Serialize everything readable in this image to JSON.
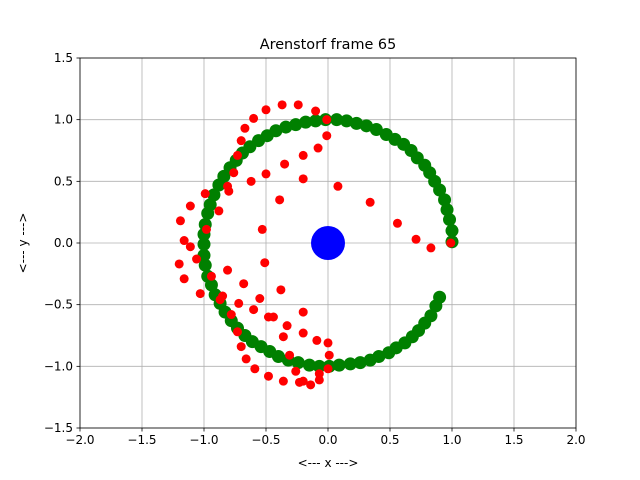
{
  "chart_data": {
    "type": "scatter",
    "title": "Arenstorf frame 65",
    "xlabel": "<---  x  --->",
    "ylabel": "<---  y  --->",
    "xlim": [
      -2.0,
      2.0
    ],
    "ylim": [
      -1.5,
      1.5
    ],
    "grid": true,
    "xticks": [
      -2.0,
      -1.5,
      -1.0,
      -0.5,
      0.0,
      0.5,
      1.0,
      1.5,
      2.0
    ],
    "yticks": [
      -1.5,
      -1.0,
      -0.5,
      0.0,
      0.5,
      1.0,
      1.5
    ],
    "xtick_labels": [
      "−2.0",
      "−1.5",
      "−1.0",
      "−0.5",
      "0.0",
      "0.5",
      "1.0",
      "1.5",
      "2.0"
    ],
    "ytick_labels": [
      "−1.5",
      "−1.0",
      "−0.5",
      "0.0",
      "0.5",
      "1.0",
      "1.5"
    ],
    "series": [
      {
        "color": "#008000",
        "marker_size": "large",
        "points": [
          [
            0.9,
            -0.44
          ],
          [
            0.87,
            -0.51
          ],
          [
            0.83,
            -0.59
          ],
          [
            0.78,
            -0.65
          ],
          [
            0.73,
            -0.71
          ],
          [
            0.68,
            -0.76
          ],
          [
            0.62,
            -0.81
          ],
          [
            0.55,
            -0.85
          ],
          [
            0.49,
            -0.89
          ],
          [
            0.41,
            -0.92
          ],
          [
            0.34,
            -0.95
          ],
          [
            0.26,
            -0.97
          ],
          [
            0.18,
            -0.98
          ],
          [
            0.09,
            -0.99
          ],
          [
            0.01,
            -1.0
          ],
          [
            -0.07,
            -1.0
          ],
          [
            -0.15,
            -0.99
          ],
          [
            -0.24,
            -0.97
          ],
          [
            -0.32,
            -0.95
          ],
          [
            -0.4,
            -0.92
          ],
          [
            -0.47,
            -0.88
          ],
          [
            -0.54,
            -0.84
          ],
          [
            -0.61,
            -0.8
          ],
          [
            -0.67,
            -0.75
          ],
          [
            -0.73,
            -0.69
          ],
          [
            -0.78,
            -0.63
          ],
          [
            -0.83,
            -0.56
          ],
          [
            -0.87,
            -0.49
          ],
          [
            -0.91,
            -0.42
          ],
          [
            -0.94,
            -0.34
          ],
          [
            -0.97,
            -0.27
          ],
          [
            -0.99,
            -0.18
          ],
          [
            -1.0,
            -0.1
          ],
          [
            -1.0,
            -0.01
          ],
          [
            -1.0,
            0.07
          ],
          [
            -0.99,
            0.15
          ],
          [
            -0.97,
            0.24
          ],
          [
            -0.95,
            0.31
          ],
          [
            -0.92,
            0.39
          ],
          [
            -0.88,
            0.47
          ],
          [
            -0.84,
            0.54
          ],
          [
            -0.79,
            0.61
          ],
          [
            -0.74,
            0.67
          ],
          [
            -0.69,
            0.73
          ],
          [
            -0.63,
            0.78
          ],
          [
            -0.56,
            0.83
          ],
          [
            -0.49,
            0.87
          ],
          [
            -0.42,
            0.91
          ],
          [
            -0.34,
            0.94
          ],
          [
            -0.26,
            0.96
          ],
          [
            -0.18,
            0.98
          ],
          [
            -0.1,
            0.99
          ],
          [
            -0.02,
            1.0
          ],
          [
            0.07,
            1.0
          ],
          [
            0.15,
            0.99
          ],
          [
            0.23,
            0.97
          ],
          [
            0.31,
            0.95
          ],
          [
            0.39,
            0.92
          ],
          [
            0.47,
            0.88
          ],
          [
            0.54,
            0.84
          ],
          [
            0.61,
            0.8
          ],
          [
            0.67,
            0.75
          ],
          [
            0.72,
            0.69
          ],
          [
            0.78,
            0.63
          ],
          [
            0.82,
            0.57
          ],
          [
            0.86,
            0.5
          ],
          [
            0.9,
            0.43
          ],
          [
            0.94,
            0.35
          ],
          [
            0.96,
            0.27
          ],
          [
            0.98,
            0.19
          ],
          [
            1.0,
            0.1
          ],
          [
            1.0,
            0.01
          ]
        ]
      },
      {
        "color": "#ff0000",
        "marker_size": "small",
        "points": [
          [
            0.99,
            0.0
          ],
          [
            0.83,
            -0.04
          ],
          [
            0.71,
            0.03
          ],
          [
            0.56,
            0.16
          ],
          [
            0.34,
            0.33
          ],
          [
            0.08,
            0.46
          ],
          [
            -0.2,
            0.52
          ],
          [
            -0.39,
            0.35
          ],
          [
            -0.53,
            0.11
          ],
          [
            -0.51,
            -0.16
          ],
          [
            -0.38,
            -0.38
          ],
          [
            -0.2,
            -0.56
          ],
          [
            0.0,
            -0.81
          ],
          [
            -0.07,
            -1.06
          ],
          [
            -0.23,
            -1.13
          ],
          [
            -0.36,
            -1.12
          ],
          [
            -0.48,
            -1.08
          ],
          [
            -0.59,
            -1.02
          ],
          [
            -0.66,
            -0.94
          ],
          [
            -0.7,
            -0.84
          ],
          [
            -0.73,
            -0.72
          ],
          [
            -0.78,
            -0.58
          ],
          [
            -0.85,
            -0.43
          ],
          [
            -0.94,
            -0.27
          ],
          [
            -1.06,
            -0.13
          ],
          [
            -1.16,
            0.02
          ],
          [
            -1.19,
            0.18
          ],
          [
            -1.11,
            0.3
          ],
          [
            -0.99,
            0.4
          ],
          [
            -0.81,
            0.46
          ],
          [
            -0.62,
            0.5
          ],
          [
            -0.5,
            0.56
          ],
          [
            -0.35,
            0.64
          ],
          [
            -0.2,
            0.71
          ],
          [
            -0.08,
            0.77
          ],
          [
            -0.01,
            0.87
          ],
          [
            -0.01,
            1.0
          ],
          [
            -0.1,
            1.07
          ],
          [
            -0.24,
            1.12
          ],
          [
            -0.37,
            1.12
          ],
          [
            -0.5,
            1.08
          ],
          [
            -0.6,
            1.01
          ],
          [
            -0.67,
            0.93
          ],
          [
            -0.7,
            0.83
          ],
          [
            -0.73,
            0.71
          ],
          [
            -0.76,
            0.57
          ],
          [
            -0.8,
            0.42
          ],
          [
            -0.88,
            0.26
          ],
          [
            -0.98,
            0.11
          ],
          [
            -1.11,
            -0.03
          ],
          [
            -1.2,
            -0.17
          ],
          [
            -1.16,
            -0.29
          ],
          [
            -1.03,
            -0.41
          ],
          [
            -0.87,
            -0.46
          ],
          [
            -0.72,
            -0.49
          ],
          [
            -0.6,
            -0.54
          ],
          [
            -0.48,
            -0.6
          ],
          [
            -0.33,
            -0.67
          ],
          [
            -0.2,
            -0.73
          ],
          [
            -0.09,
            -0.79
          ],
          [
            0.01,
            -0.91
          ],
          [
            0.0,
            -1.02
          ],
          [
            -0.07,
            -1.11
          ],
          [
            -0.14,
            -1.15
          ],
          [
            -0.2,
            -1.12
          ],
          [
            -0.26,
            -1.04
          ],
          [
            -0.31,
            -0.91
          ],
          [
            -0.36,
            -0.76
          ],
          [
            -0.44,
            -0.6
          ],
          [
            -0.55,
            -0.45
          ],
          [
            -0.68,
            -0.33
          ],
          [
            -0.81,
            -0.22
          ]
        ]
      },
      {
        "color": "#0000ff",
        "marker_size": "huge",
        "points": [
          [
            0.0,
            0.0
          ]
        ]
      }
    ]
  }
}
